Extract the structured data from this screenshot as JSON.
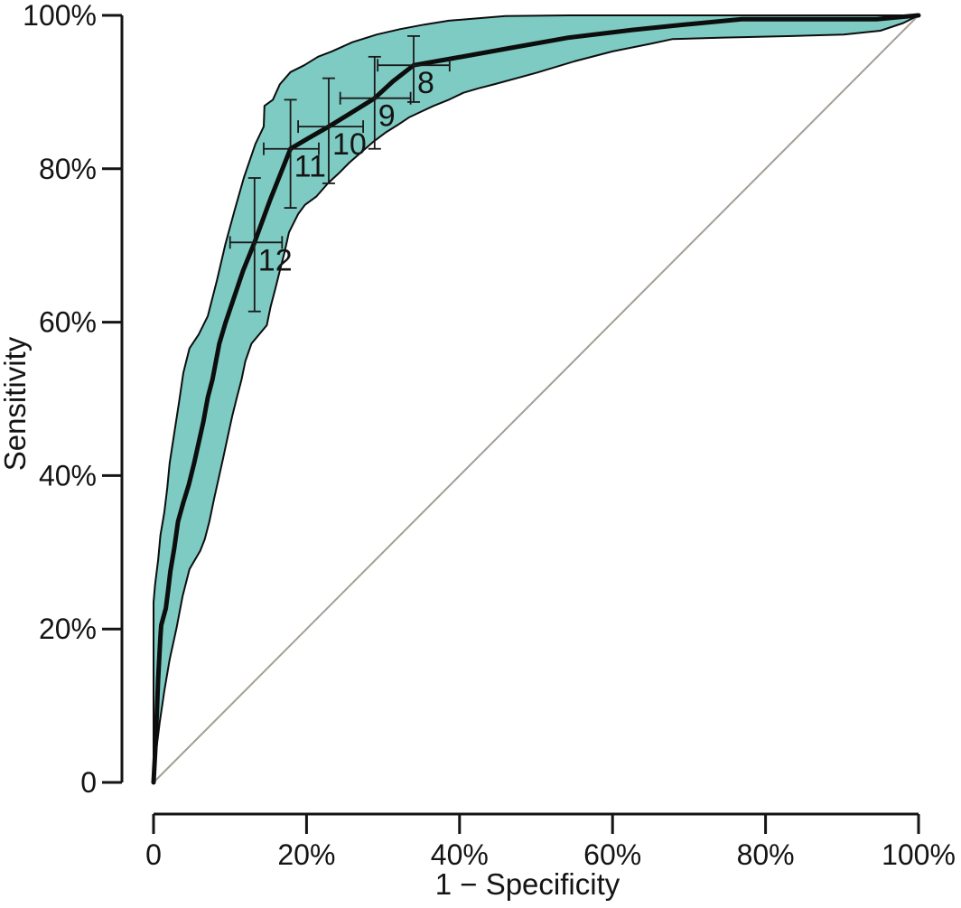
{
  "chart_data": {
    "type": "line",
    "title": "",
    "xlabel": "1 − Specificity",
    "ylabel": "Sensitivity",
    "legend": "none",
    "grid": false,
    "axis": {
      "x": {
        "min": 0,
        "max": 100,
        "tick_values": [
          0,
          20,
          40,
          60,
          80,
          100
        ],
        "tick_labels": [
          "0",
          "20%",
          "40%",
          "60%",
          "80%",
          "100%"
        ]
      },
      "y": {
        "min": 0,
        "max": 100,
        "tick_values": [
          0,
          20,
          40,
          60,
          80,
          100
        ],
        "tick_labels": [
          "0",
          "20%",
          "40%",
          "60%",
          "80%",
          "100%"
        ]
      }
    },
    "roc_curve": {
      "name": "ROC curve",
      "points": [
        [
          0,
          0
        ],
        [
          0.3,
          5.5
        ],
        [
          0.6,
          13.5
        ],
        [
          0.9,
          19
        ],
        [
          1,
          20.5
        ],
        [
          1.6,
          22.7
        ],
        [
          1.9,
          25
        ],
        [
          2.2,
          27.5
        ],
        [
          2.7,
          30.5
        ],
        [
          3.2,
          34
        ],
        [
          3.9,
          36.5
        ],
        [
          4.6,
          38.8
        ],
        [
          5.3,
          41.6
        ],
        [
          5.9,
          44.3
        ],
        [
          6.5,
          47
        ],
        [
          7.1,
          50.2
        ],
        [
          7.7,
          52.5
        ],
        [
          8.6,
          57.2
        ],
        [
          9.4,
          59.9
        ],
        [
          11.7,
          66.7
        ],
        [
          13.2,
          70.4
        ],
        [
          15.3,
          76.1
        ],
        [
          17.9,
          82.6
        ],
        [
          20.1,
          83.9
        ],
        [
          22.9,
          85.5
        ],
        [
          26,
          87.4
        ],
        [
          28.9,
          89.2
        ],
        [
          31.3,
          91.4
        ],
        [
          34,
          93.5
        ],
        [
          38.6,
          94.3
        ],
        [
          46.4,
          95.7
        ],
        [
          54.3,
          97.1
        ],
        [
          62.6,
          98.1
        ],
        [
          68.5,
          98.7
        ],
        [
          76.9,
          99.5
        ],
        [
          94.5,
          99.5
        ],
        [
          100,
          100
        ]
      ]
    },
    "confidence_band": {
      "upper": [
        [
          0,
          0
        ],
        [
          0,
          9
        ],
        [
          0,
          23.5
        ],
        [
          0.2,
          25.8
        ],
        [
          0.6,
          29
        ],
        [
          0.9,
          32.2
        ],
        [
          1.4,
          35.2
        ],
        [
          1.8,
          38.4
        ],
        [
          2.1,
          41.6
        ],
        [
          2.7,
          45.5
        ],
        [
          3.3,
          49.4
        ],
        [
          3.9,
          53.4
        ],
        [
          4.7,
          56.6
        ],
        [
          5.9,
          58.4
        ],
        [
          7.1,
          60.8
        ],
        [
          8.3,
          65.5
        ],
        [
          9.4,
          70.2
        ],
        [
          10.6,
          74.6
        ],
        [
          11.8,
          78.8
        ],
        [
          13.3,
          83.2
        ],
        [
          14.4,
          85.5
        ],
        [
          14.5,
          88.2
        ],
        [
          15.6,
          89
        ],
        [
          16.5,
          91
        ],
        [
          17.9,
          92.6
        ],
        [
          19.7,
          93.5
        ],
        [
          21.5,
          94.6
        ],
        [
          23.3,
          95.3
        ],
        [
          26,
          96.5
        ],
        [
          29.2,
          97.5
        ],
        [
          32.2,
          98.2
        ],
        [
          35.4,
          98.8
        ],
        [
          38.6,
          99.3
        ],
        [
          46,
          99.9
        ],
        [
          54.3,
          100
        ],
        [
          98.8,
          100
        ],
        [
          100,
          100
        ]
      ],
      "lower": [
        [
          0,
          0
        ],
        [
          0.35,
          4.2
        ],
        [
          0.8,
          7.8
        ],
        [
          1.4,
          11.9
        ],
        [
          2.1,
          16
        ],
        [
          3,
          20.1
        ],
        [
          3.8,
          24.3
        ],
        [
          4.7,
          27.8
        ],
        [
          6.1,
          30.2
        ],
        [
          6.7,
          31.7
        ],
        [
          7.3,
          34
        ],
        [
          7.9,
          36.9
        ],
        [
          8.5,
          39.6
        ],
        [
          9.1,
          42.3
        ],
        [
          9.7,
          45.1
        ],
        [
          10.3,
          47.8
        ],
        [
          10.9,
          50.2
        ],
        [
          11.5,
          52.5
        ],
        [
          12,
          54.9
        ],
        [
          12.8,
          57.2
        ],
        [
          14.8,
          59.6
        ],
        [
          15.3,
          62
        ],
        [
          15.9,
          64.3
        ],
        [
          16.5,
          66.7
        ],
        [
          17.1,
          69
        ],
        [
          17.7,
          71.7
        ],
        [
          18.9,
          74.1
        ],
        [
          19.8,
          75.3
        ],
        [
          21.3,
          76.4
        ],
        [
          22.8,
          78.1
        ],
        [
          24.2,
          79.4
        ],
        [
          25.6,
          80.8
        ],
        [
          27.2,
          82.2
        ],
        [
          28.7,
          83.5
        ],
        [
          30.3,
          84.7
        ],
        [
          31.9,
          85.7
        ],
        [
          33.4,
          86.7
        ],
        [
          35.1,
          87.5
        ],
        [
          36.6,
          88.2
        ],
        [
          38.6,
          89
        ],
        [
          40.5,
          89.9
        ],
        [
          42.5,
          90.5
        ],
        [
          44.5,
          91
        ],
        [
          50,
          92.5
        ],
        [
          55,
          94
        ],
        [
          60,
          95.3
        ],
        [
          65,
          96.3
        ],
        [
          67.8,
          96.9
        ],
        [
          74.5,
          97.1
        ],
        [
          83.5,
          97.3
        ],
        [
          90.2,
          97.5
        ],
        [
          95,
          98
        ],
        [
          98,
          99
        ],
        [
          100,
          100
        ]
      ]
    },
    "reference_line": {
      "name": "chance diagonal",
      "points": [
        [
          0,
          0
        ],
        [
          100,
          100
        ]
      ]
    },
    "cutoff_points": [
      {
        "label": "8",
        "x": 34.0,
        "y": 93.5,
        "x_ci": [
          29.3,
          38.7
        ],
        "y_ci": [
          88.7,
          97.3
        ]
      },
      {
        "label": "9",
        "x": 28.9,
        "y": 89.2,
        "x_ci": [
          24.4,
          33.6
        ],
        "y_ci": [
          82.6,
          94.6
        ]
      },
      {
        "label": "10",
        "x": 22.9,
        "y": 85.5,
        "x_ci": [
          18.9,
          27.4
        ],
        "y_ci": [
          78.1,
          91.8
        ]
      },
      {
        "label": "11",
        "x": 17.9,
        "y": 82.6,
        "x_ci": [
          14.4,
          21.6
        ],
        "y_ci": [
          74.9,
          89.0
        ]
      },
      {
        "label": "12",
        "x": 13.2,
        "y": 70.4,
        "x_ci": [
          10.0,
          16.8
        ],
        "y_ci": [
          61.4,
          78.8
        ]
      }
    ],
    "colors": {
      "band_fill": "#7ecbc3",
      "band_edge": "#0d0d0d",
      "curve": "#0d0d0d",
      "reference": "#a59e96",
      "axis": "#141414",
      "error_bar": "#1a1a1a"
    }
  }
}
